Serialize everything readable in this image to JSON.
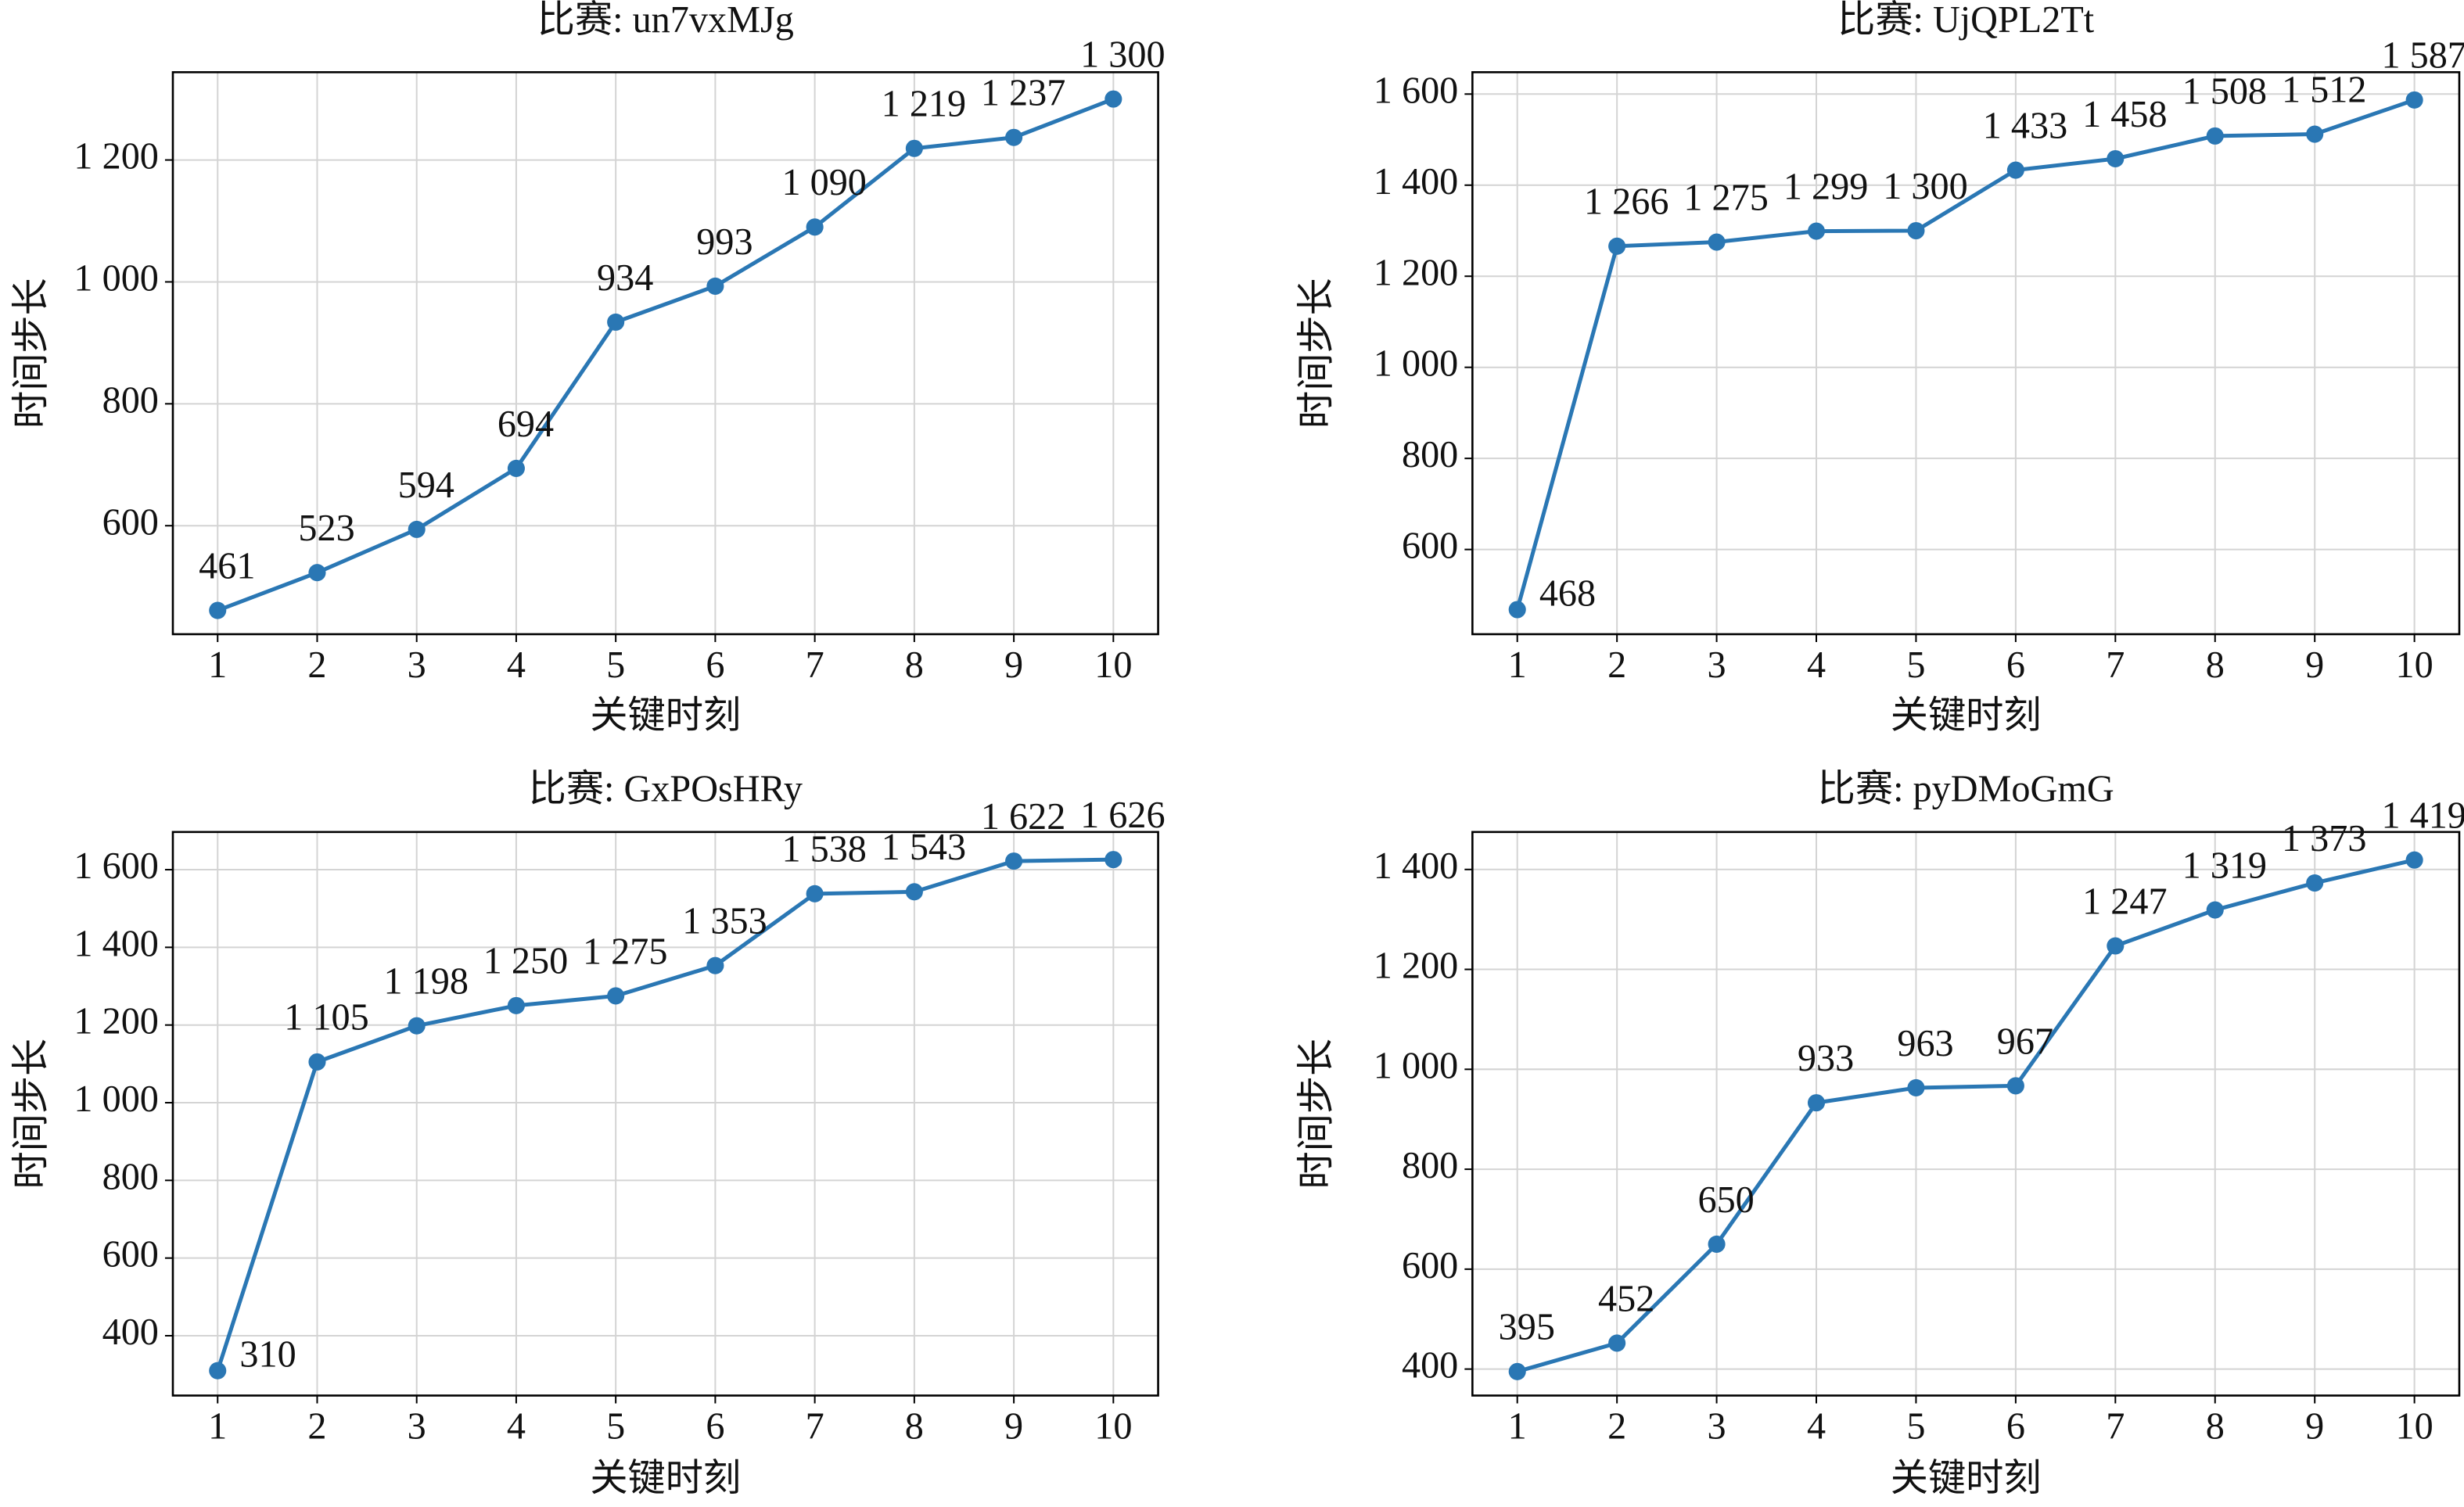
{
  "chart_data": [
    {
      "type": "line",
      "title": "比赛: un7vxMJg",
      "xlabel": "关键时刻",
      "ylabel": "时间步长",
      "color": "#2a77b4",
      "grid": true,
      "x": [
        1,
        2,
        3,
        4,
        5,
        6,
        7,
        8,
        9,
        10
      ],
      "values": [
        461,
        523,
        594,
        694,
        934,
        993,
        1090,
        1219,
        1237,
        1300
      ],
      "value_labels": [
        "461",
        "523",
        "594",
        "694",
        "934",
        "993",
        "1 090",
        "1 219",
        "1 237",
        "1 300"
      ],
      "xlim": [
        0.55,
        10.45
      ],
      "xticks": [
        1,
        2,
        3,
        4,
        5,
        6,
        7,
        8,
        9,
        10
      ],
      "ylim": [
        422,
        1344
      ],
      "yticks": [
        600,
        800,
        {
          "value": 1000,
          "label": "1 000"
        },
        {
          "value": 1200,
          "label": "1 200"
        }
      ]
    },
    {
      "type": "line",
      "title": "比赛: UjQPL2Tt",
      "xlabel": "关键时刻",
      "ylabel": "时间步长",
      "color": "#2a77b4",
      "grid": true,
      "x": [
        1,
        2,
        3,
        4,
        5,
        6,
        7,
        8,
        9,
        10
      ],
      "values": [
        468,
        1266,
        1275,
        1299,
        1300,
        1433,
        1458,
        1508,
        1512,
        1587
      ],
      "value_labels": [
        "468",
        "1 266",
        "1 275",
        "1 299",
        "1 300",
        "1 433",
        "1 458",
        "1 508",
        "1 512",
        "1 587"
      ],
      "xlim": [
        0.55,
        10.45
      ],
      "xticks": [
        1,
        2,
        3,
        4,
        5,
        6,
        7,
        8,
        9,
        10
      ],
      "ylim": [
        414,
        1648
      ],
      "yticks": [
        600,
        800,
        {
          "value": 1000,
          "label": "1 000"
        },
        {
          "value": 1200,
          "label": "1 200"
        },
        {
          "value": 1400,
          "label": "1 400"
        },
        {
          "value": 1600,
          "label": "1 600"
        }
      ]
    },
    {
      "type": "line",
      "title": "比赛: GxPOsHRy",
      "xlabel": "关键时刻",
      "ylabel": "时间步长",
      "color": "#2a77b4",
      "grid": true,
      "x": [
        1,
        2,
        3,
        4,
        5,
        6,
        7,
        8,
        9,
        10
      ],
      "values": [
        310,
        1105,
        1198,
        1250,
        1275,
        1353,
        1538,
        1543,
        1622,
        1626
      ],
      "value_labels": [
        "310",
        "1 105",
        "1 198",
        "1 250",
        "1 275",
        "1 353",
        "1 538",
        "1 543",
        "1 622",
        "1 626"
      ],
      "xlim": [
        0.55,
        10.45
      ],
      "xticks": [
        1,
        2,
        3,
        4,
        5,
        6,
        7,
        8,
        9,
        10
      ],
      "ylim": [
        246,
        1697
      ],
      "yticks": [
        400,
        600,
        800,
        {
          "value": 1000,
          "label": "1 000"
        },
        {
          "value": 1200,
          "label": "1 200"
        },
        {
          "value": 1400,
          "label": "1 400"
        },
        {
          "value": 1600,
          "label": "1 600"
        }
      ]
    },
    {
      "type": "line",
      "title": "比赛: pyDMoGmG",
      "xlabel": "关键时刻",
      "ylabel": "时间步长",
      "color": "#2a77b4",
      "grid": true,
      "x": [
        1,
        2,
        3,
        4,
        5,
        6,
        7,
        8,
        9,
        10
      ],
      "values": [
        395,
        452,
        650,
        933,
        963,
        967,
        1247,
        1319,
        1373,
        1419
      ],
      "value_labels": [
        "395",
        "452",
        "650",
        "933",
        "963",
        "967",
        "1 247",
        "1 319",
        "1 373",
        "1 419"
      ],
      "xlim": [
        0.55,
        10.45
      ],
      "xticks": [
        1,
        2,
        3,
        4,
        5,
        6,
        7,
        8,
        9,
        10
      ],
      "ylim": [
        347,
        1475
      ],
      "yticks": [
        400,
        600,
        800,
        {
          "value": 1000,
          "label": "1 000"
        },
        {
          "value": 1200,
          "label": "1 200"
        },
        {
          "value": 1400,
          "label": "1 400"
        }
      ]
    }
  ]
}
